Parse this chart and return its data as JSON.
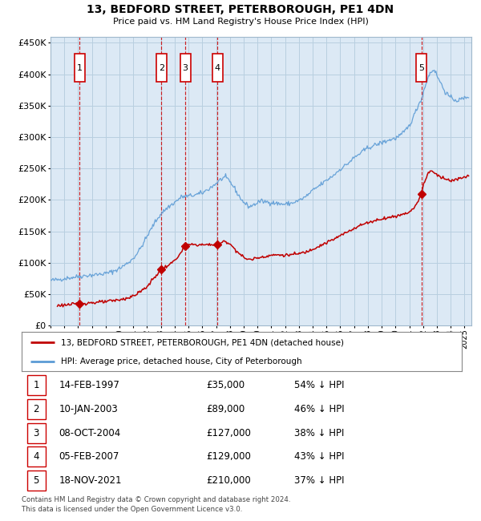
{
  "title": "13, BEDFORD STREET, PETERBOROUGH, PE1 4DN",
  "subtitle": "Price paid vs. HM Land Registry's House Price Index (HPI)",
  "footnote1": "Contains HM Land Registry data © Crown copyright and database right 2024.",
  "footnote2": "This data is licensed under the Open Government Licence v3.0.",
  "legend_line1": "13, BEDFORD STREET, PETERBOROUGH, PE1 4DN (detached house)",
  "legend_line2": "HPI: Average price, detached house, City of Peterborough",
  "transactions": [
    {
      "num": 1,
      "date": "14-FEB-1997",
      "price": 35000,
      "pct": "54% ↓ HPI",
      "year_x": 1997.12
    },
    {
      "num": 2,
      "date": "10-JAN-2003",
      "price": 89000,
      "pct": "46% ↓ HPI",
      "year_x": 2003.03
    },
    {
      "num": 3,
      "date": "08-OCT-2004",
      "price": 127000,
      "pct": "38% ↓ HPI",
      "year_x": 2004.77
    },
    {
      "num": 4,
      "date": "05-FEB-2007",
      "price": 129000,
      "pct": "43% ↓ HPI",
      "year_x": 2007.1
    },
    {
      "num": 5,
      "date": "18-NOV-2021",
      "price": 210000,
      "pct": "37% ↓ HPI",
      "year_x": 2021.88
    }
  ],
  "hpi_color": "#5b9bd5",
  "price_color": "#c00000",
  "plot_bg_color": "#dce9f5",
  "grid_color": "#b8cfe0",
  "ylim": [
    0,
    460000
  ],
  "yticks": [
    0,
    50000,
    100000,
    150000,
    200000,
    250000,
    300000,
    350000,
    400000,
    450000
  ],
  "xlim_start": 1995.0,
  "xlim_end": 2025.5
}
